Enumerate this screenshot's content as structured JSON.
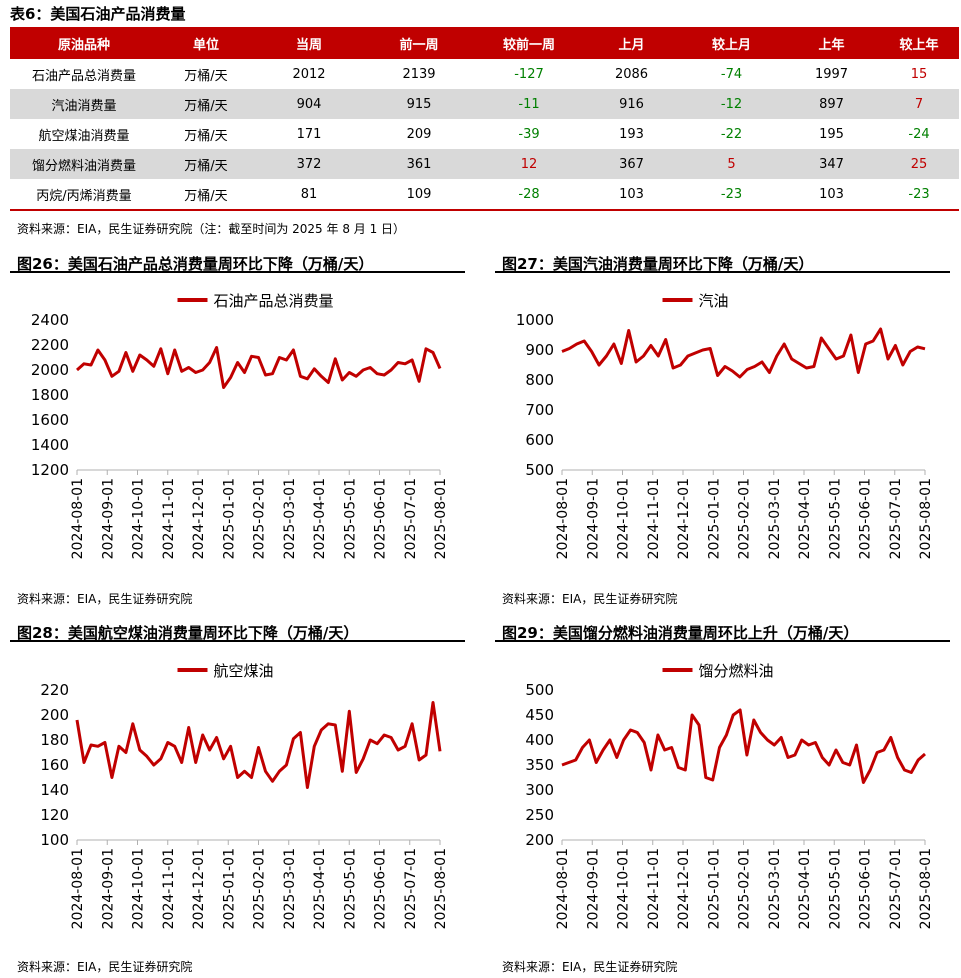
{
  "table": {
    "title": "表6：美国石油产品消费量",
    "headers": [
      "原油品种",
      "单位",
      "当周",
      "前一周",
      "较前一周",
      "上月",
      "较上月",
      "上年",
      "较上年"
    ],
    "rows": [
      [
        "石油产品总消费量",
        "万桶/天",
        "2012",
        "2139",
        "-127",
        "2086",
        "-74",
        "1997",
        "15"
      ],
      [
        "汽油消费量",
        "万桶/天",
        "904",
        "915",
        "-11",
        "916",
        "-12",
        "897",
        "7"
      ],
      [
        "航空煤油消费量",
        "万桶/天",
        "171",
        "209",
        "-39",
        "193",
        "-22",
        "195",
        "-24"
      ],
      [
        "馏分燃料油消费量",
        "万桶/天",
        "372",
        "361",
        "12",
        "367",
        "5",
        "347",
        "25"
      ],
      [
        "丙烷/丙烯消费量",
        "万桶/天",
        "81",
        "109",
        "-28",
        "103",
        "-23",
        "103",
        "-23"
      ]
    ],
    "source": "资料来源：EIA，民生证券研究院（注：截至时间为 2025 年 8 月 1 日）"
  },
  "colors": {
    "accent": "#c00000",
    "negative": "#008000",
    "alt_row": "#d9d9d9"
  },
  "chart_data": [
    {
      "type": "line",
      "title": "图26：美国石油产品总消费量周环比下降（万桶/天）",
      "series_name": "石油产品总消费量",
      "x_ticks": [
        "2024-08-01",
        "2024-09-01",
        "2024-10-01",
        "2024-11-01",
        "2024-12-01",
        "2025-01-01",
        "2025-02-01",
        "2025-03-01",
        "2025-04-01",
        "2025-05-01",
        "2025-06-01",
        "2025-07-01",
        "2025-08-01"
      ],
      "yticks": [
        1200,
        1400,
        1600,
        1800,
        2000,
        2200,
        2400
      ],
      "ylim": [
        1200,
        2400
      ],
      "values": [
        2000,
        2050,
        2040,
        2160,
        2080,
        1950,
        1990,
        2140,
        1990,
        2120,
        2080,
        2030,
        2170,
        1970,
        2160,
        1990,
        2020,
        1980,
        2000,
        2060,
        2180,
        1860,
        1940,
        2060,
        1980,
        2110,
        2100,
        1960,
        1970,
        2100,
        2080,
        2160,
        1950,
        1930,
        2010,
        1950,
        1900,
        2090,
        1920,
        1980,
        1950,
        2000,
        2020,
        1970,
        1960,
        2000,
        2060,
        2050,
        2080,
        1910,
        2170,
        2140,
        2012
      ],
      "source": "资料来源：EIA，民生证券研究院"
    },
    {
      "type": "line",
      "title": "图27：美国汽油消费量周环比下降（万桶/天）",
      "series_name": "汽油",
      "x_ticks": [
        "2024-08-01",
        "2024-09-01",
        "2024-10-01",
        "2024-11-01",
        "2024-12-01",
        "2025-01-01",
        "2025-02-01",
        "2025-03-01",
        "2025-04-01",
        "2025-05-01",
        "2025-06-01",
        "2025-07-01",
        "2025-08-01"
      ],
      "yticks": [
        500,
        600,
        700,
        800,
        900,
        1000
      ],
      "ylim": [
        500,
        1000
      ],
      "values": [
        895,
        905,
        920,
        930,
        895,
        850,
        880,
        920,
        855,
        965,
        860,
        880,
        915,
        880,
        935,
        840,
        850,
        880,
        890,
        900,
        905,
        815,
        845,
        830,
        810,
        835,
        845,
        860,
        825,
        880,
        920,
        870,
        855,
        840,
        845,
        940,
        905,
        870,
        880,
        950,
        825,
        920,
        930,
        970,
        870,
        915,
        850,
        895,
        910,
        904
      ],
      "source": "资料来源：EIA，民生证券研究院"
    },
    {
      "type": "line",
      "title": "图28：美国航空煤油消费量周环比下降（万桶/天）",
      "series_name": "航空煤油",
      "x_ticks": [
        "2024-08-01",
        "2024-09-01",
        "2024-10-01",
        "2024-11-01",
        "2024-12-01",
        "2025-01-01",
        "2025-02-01",
        "2025-03-01",
        "2025-04-01",
        "2025-05-01",
        "2025-06-01",
        "2025-07-01",
        "2025-08-01"
      ],
      "yticks": [
        100,
        120,
        140,
        160,
        180,
        200,
        220
      ],
      "ylim": [
        100,
        220
      ],
      "values": [
        196,
        162,
        176,
        175,
        178,
        150,
        175,
        170,
        193,
        172,
        167,
        160,
        165,
        178,
        175,
        162,
        190,
        162,
        184,
        172,
        182,
        165,
        175,
        150,
        155,
        150,
        174,
        155,
        147,
        155,
        160,
        181,
        186,
        142,
        175,
        188,
        193,
        192,
        155,
        203,
        154,
        165,
        180,
        177,
        184,
        182,
        172,
        175,
        193,
        164,
        168,
        210,
        171
      ],
      "source": "资料来源：EIA，民生证券研究院"
    },
    {
      "type": "line",
      "title": "图29：美国馏分燃料油消费量周环比上升（万桶/天）",
      "series_name": "馏分燃料油",
      "x_ticks": [
        "2024-08-01",
        "2024-09-01",
        "2024-10-01",
        "2024-11-01",
        "2024-12-01",
        "2025-01-01",
        "2025-02-01",
        "2025-03-01",
        "2025-04-01",
        "2025-05-01",
        "2025-06-01",
        "2025-07-01",
        "2025-08-01"
      ],
      "yticks": [
        200,
        250,
        300,
        350,
        400,
        450,
        500
      ],
      "ylim": [
        200,
        500
      ],
      "values": [
        350,
        355,
        360,
        385,
        400,
        355,
        380,
        400,
        365,
        400,
        420,
        415,
        395,
        340,
        410,
        380,
        385,
        345,
        340,
        450,
        430,
        325,
        320,
        385,
        410,
        450,
        460,
        370,
        440,
        415,
        400,
        390,
        405,
        365,
        370,
        400,
        390,
        395,
        365,
        350,
        380,
        355,
        350,
        390,
        315,
        340,
        375,
        380,
        405,
        365,
        340,
        335,
        360,
        372
      ],
      "source": "资料来源：EIA，民生证券研究院"
    }
  ]
}
